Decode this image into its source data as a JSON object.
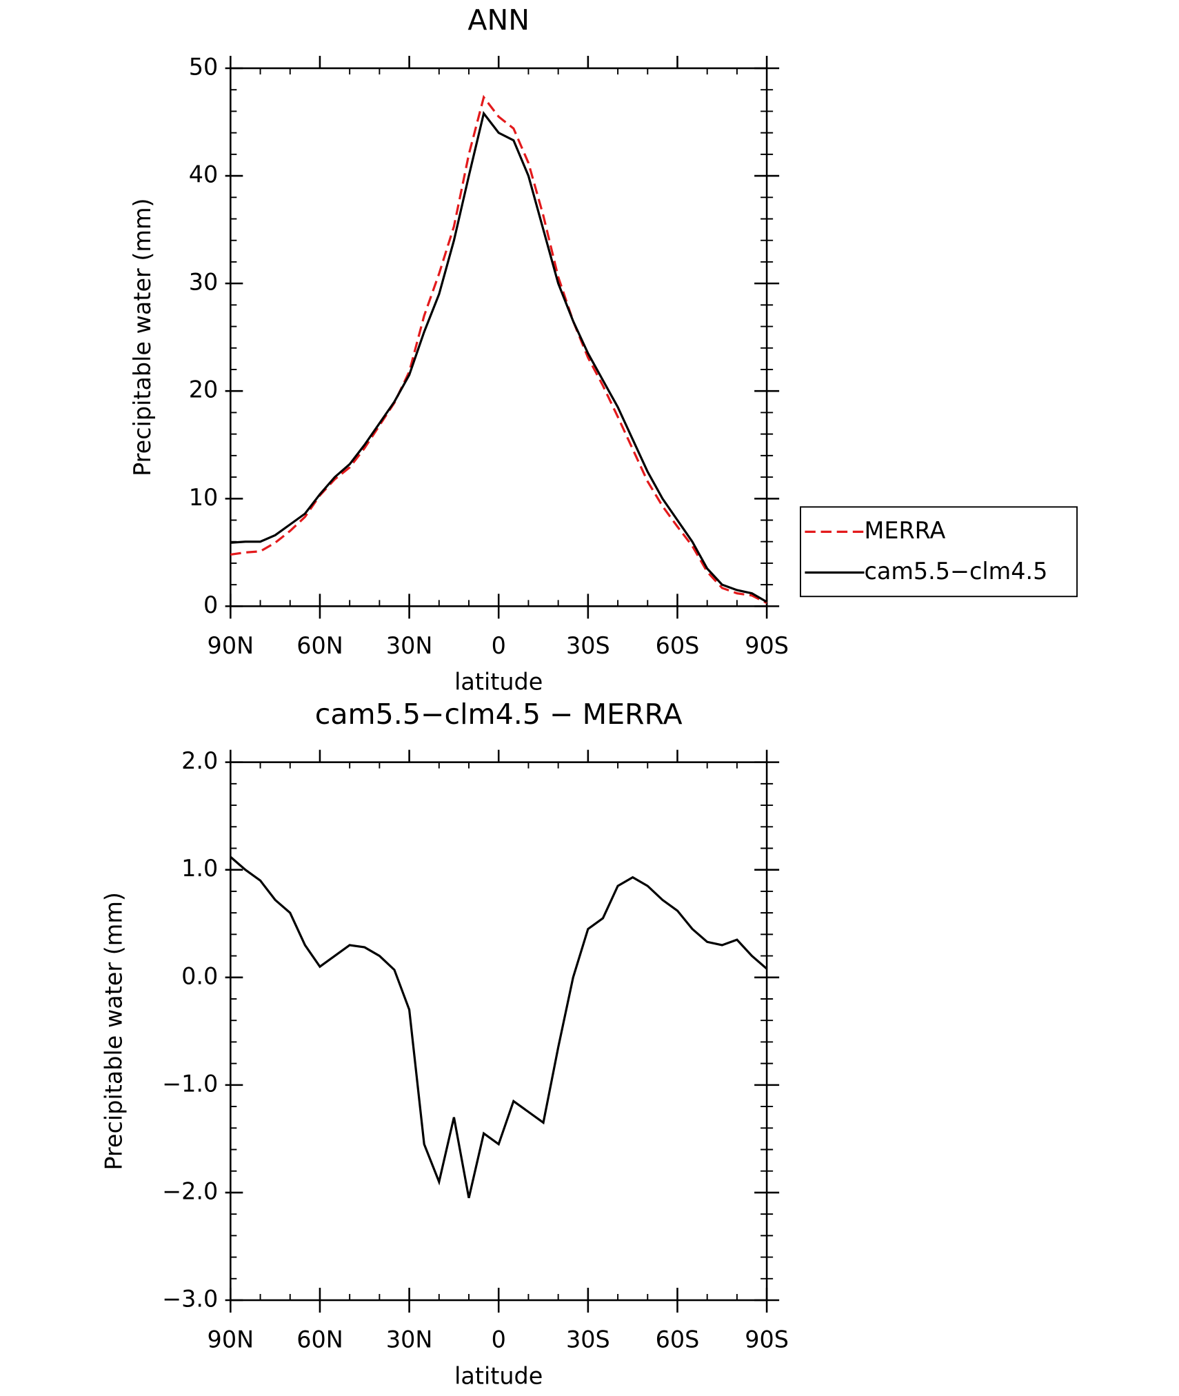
{
  "chart_data": [
    {
      "type": "line",
      "title": "ANN",
      "xlabel": "latitude",
      "ylabel": "Precipitable water (mm)",
      "x": [
        90,
        85,
        80,
        75,
        70,
        65,
        60,
        55,
        50,
        45,
        40,
        35,
        30,
        25,
        20,
        15,
        10,
        5,
        0,
        -5,
        -10,
        -15,
        -20,
        -25,
        -30,
        -35,
        -40,
        -45,
        -50,
        -55,
        -60,
        -65,
        -70,
        -75,
        -80,
        -85,
        -90
      ],
      "series": [
        {
          "name": "MERRA",
          "color": "#e31a1c",
          "dash": true,
          "values": [
            4.8,
            5.0,
            5.1,
            5.9,
            7.0,
            8.3,
            10.3,
            11.8,
            12.9,
            14.7,
            16.8,
            18.9,
            21.8,
            27.0,
            30.9,
            35.3,
            42.0,
            47.3,
            45.5,
            44.4,
            41.2,
            36.3,
            30.6,
            26.5,
            23.1,
            20.5,
            17.6,
            14.6,
            11.6,
            9.3,
            7.4,
            5.6,
            3.2,
            1.7,
            1.2,
            1.0,
            0.3
          ]
        },
        {
          "name": "cam5.5−clm4.5",
          "color": "#000000",
          "dash": false,
          "values": [
            5.9,
            6.0,
            6.0,
            6.6,
            7.6,
            8.6,
            10.4,
            12.0,
            13.2,
            15.0,
            17.0,
            19.0,
            21.5,
            25.5,
            29.0,
            34.0,
            40.0,
            45.8,
            44.0,
            43.3,
            40.0,
            35.0,
            30.0,
            26.5,
            23.5,
            21.0,
            18.5,
            15.5,
            12.5,
            10.0,
            8.0,
            6.0,
            3.5,
            2.0,
            1.5,
            1.2,
            0.4
          ]
        }
      ],
      "xlim": [
        90,
        -90
      ],
      "xticks": [
        {
          "value": 90,
          "label": "90N"
        },
        {
          "value": 60,
          "label": "60N"
        },
        {
          "value": 30,
          "label": "30N"
        },
        0,
        {
          "value": -30,
          "label": "30S"
        },
        {
          "value": -60,
          "label": "60S"
        },
        {
          "value": -90,
          "label": "90S"
        }
      ],
      "ylim": [
        0,
        50
      ],
      "yticks": [
        0,
        10,
        20,
        30,
        40,
        50
      ],
      "legend": "right"
    },
    {
      "type": "line",
      "title": "cam5.5−clm4.5 − MERRA",
      "xlabel": "latitude",
      "ylabel": "Precipitable water (mm)",
      "x": [
        90,
        85,
        80,
        75,
        70,
        65,
        60,
        55,
        50,
        45,
        40,
        35,
        30,
        25,
        20,
        15,
        10,
        5,
        0,
        -5,
        -10,
        -15,
        -20,
        -25,
        -30,
        -35,
        -40,
        -45,
        -50,
        -55,
        -60,
        -65,
        -70,
        -75,
        -80,
        -85,
        -90
      ],
      "series": [
        {
          "name": "cam5.5−clm4.5 − MERRA",
          "color": "#000000",
          "dash": false,
          "values": [
            1.12,
            1.0,
            0.9,
            0.72,
            0.6,
            0.3,
            0.1,
            0.2,
            0.3,
            0.28,
            0.2,
            0.07,
            -0.3,
            -1.55,
            -1.9,
            -1.3,
            -2.05,
            -1.45,
            -1.55,
            -1.15,
            -1.25,
            -1.35,
            -0.65,
            0.0,
            0.45,
            0.55,
            0.85,
            0.93,
            0.85,
            0.72,
            0.62,
            0.45,
            0.33,
            0.3,
            0.35,
            0.2,
            0.08
          ]
        }
      ],
      "xlim": [
        90,
        -90
      ],
      "xticks": [
        {
          "value": 90,
          "label": "90N"
        },
        {
          "value": 60,
          "label": "60N"
        },
        {
          "value": 30,
          "label": "30N"
        },
        0,
        {
          "value": -30,
          "label": "30S"
        },
        {
          "value": -60,
          "label": "60S"
        },
        {
          "value": -90,
          "label": "90S"
        }
      ],
      "ylim": [
        -3,
        2
      ],
      "yticks": [
        {
          "value": -3,
          "label": "−3.0"
        },
        {
          "value": -2,
          "label": "−2.0"
        },
        {
          "value": -1,
          "label": "−1.0"
        },
        {
          "value": 0,
          "label": "0.0"
        },
        {
          "value": 1,
          "label": "1.0"
        },
        {
          "value": 2,
          "label": "2.0"
        }
      ]
    }
  ]
}
